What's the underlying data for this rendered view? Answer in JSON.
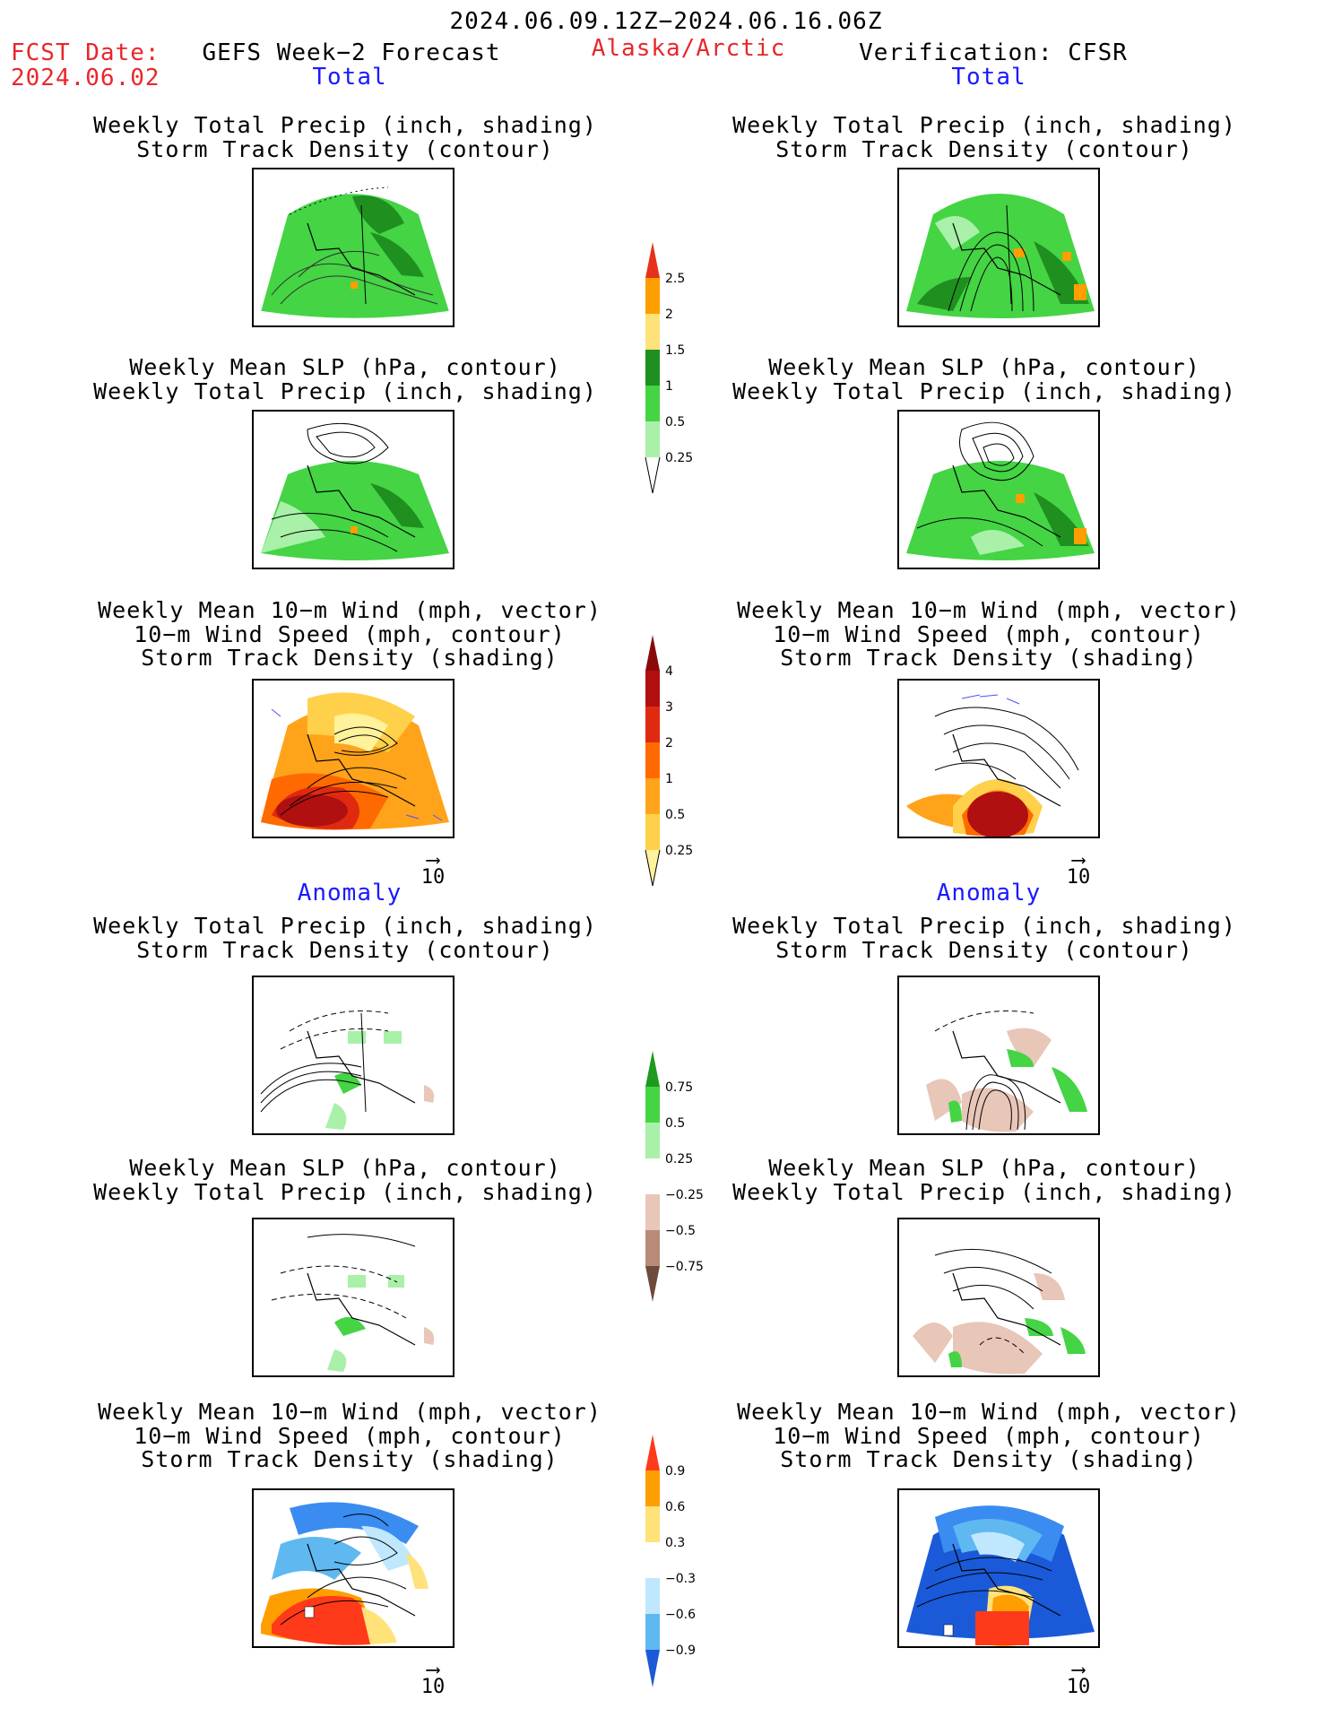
{
  "header": {
    "period": "2024.06.09.12Z−2024.06.16.06Z",
    "fcst_label": "FCST Date:",
    "fcst_date": "2024.06.02",
    "model": "GEFS Week−2 Forecast",
    "region": "Alaska/Arctic",
    "verification": "Verification: CFSR"
  },
  "sections": {
    "total": "Total",
    "anomaly": "Anomaly"
  },
  "panels": {
    "precip_track": [
      "Weekly Total Precip (inch, shading)",
      "Storm Track Density (contour)"
    ],
    "slp_precip": [
      "Weekly Mean SLP (hPa, contour)",
      "Weekly Total Precip (inch, shading)"
    ],
    "wind": [
      "Weekly Mean 10−m Wind (mph, vector)",
      "10−m Wind Speed (mph, contour)",
      "Storm Track Density (shading)"
    ]
  },
  "vector_reference": "10",
  "colorbars": {
    "precip_total": {
      "labels": [
        "2.5",
        "2",
        "1.5",
        "1",
        "0.5",
        "0.25"
      ],
      "colors": [
        "#e8311a",
        "#ff9e00",
        "#ffe27a",
        "#1f8f1f",
        "#44d444",
        "#a9f0a9"
      ]
    },
    "track_total": {
      "labels": [
        "4",
        "3",
        "2",
        "1",
        "0.5",
        "0.25"
      ],
      "colors": [
        "#b01010",
        "#e02a10",
        "#ff6a00",
        "#ffa31a",
        "#ffd04a",
        "#fff29a"
      ]
    },
    "precip_anom": {
      "labels": [
        "0.75",
        "0.5",
        "0.25",
        "−0.25",
        "−0.5",
        "−0.75"
      ],
      "colors": [
        "#1e9a1e",
        "#44d444",
        "#a9f0a9",
        "#ffffff",
        "#e8c6b8",
        "#b88a78",
        "#6e4a3a"
      ]
    },
    "track_anom": {
      "labels": [
        "0.9",
        "0.6",
        "0.3",
        "−0.3",
        "−0.6",
        "−0.9"
      ],
      "colors": [
        "#ff3a1a",
        "#ff9e00",
        "#ffe27a",
        "#ffffff",
        "#bfe8ff",
        "#5fb8f0",
        "#3a8cf0",
        "#1a5ad8"
      ]
    }
  }
}
